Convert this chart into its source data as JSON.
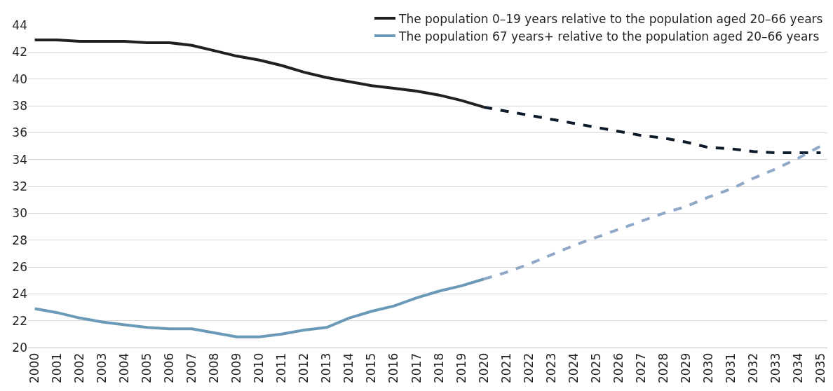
{
  "chart_data": {
    "type": "line",
    "categories": [
      "2000",
      "2001",
      "2002",
      "2003",
      "2004",
      "2005",
      "2006",
      "2007",
      "2008",
      "2009",
      "2010",
      "2011",
      "2012",
      "2013",
      "2014",
      "2015",
      "2016",
      "2017",
      "2018",
      "2019",
      "2020",
      "2021",
      "2022",
      "2023",
      "2024",
      "2025",
      "2026",
      "2027",
      "2028",
      "2029",
      "2030",
      "2031",
      "2032",
      "2033",
      "2034",
      "2035"
    ],
    "series": [
      {
        "name": "The population 0–19 years relative to the population aged 20–66 years",
        "color": "#231f20",
        "line_style": "solid",
        "values": [
          42.9,
          42.9,
          42.8,
          42.8,
          42.8,
          42.7,
          42.7,
          42.5,
          42.1,
          41.7,
          41.4,
          41.0,
          40.5,
          40.1,
          39.8,
          39.5,
          39.3,
          39.1,
          38.8,
          38.4,
          37.9,
          null,
          null,
          null,
          null,
          null,
          null,
          null,
          null,
          null,
          null,
          null,
          null,
          null,
          null,
          null
        ]
      },
      {
        "name": "The population 67 years+ relative to the population aged 20–66 years",
        "color": "#6b9ab8",
        "line_style": "solid",
        "values": [
          22.9,
          22.6,
          22.2,
          21.9,
          21.7,
          21.5,
          21.4,
          21.4,
          21.1,
          20.8,
          20.8,
          21.0,
          21.3,
          21.5,
          22.2,
          22.7,
          23.1,
          23.7,
          24.2,
          24.6,
          25.1,
          null,
          null,
          null,
          null,
          null,
          null,
          null,
          null,
          null,
          null,
          null,
          null,
          null,
          null,
          null
        ]
      },
      {
        "color": "#0d1b2a",
        "line_style": "dashed",
        "values": [
          null,
          null,
          null,
          null,
          null,
          null,
          null,
          null,
          null,
          null,
          null,
          null,
          null,
          null,
          null,
          null,
          null,
          null,
          null,
          null,
          37.9,
          37.6,
          37.3,
          37.0,
          36.7,
          36.4,
          36.1,
          35.8,
          35.6,
          35.3,
          34.9,
          34.8,
          34.6,
          34.5,
          34.5,
          34.5
        ]
      },
      {
        "color": "#8fa8c8",
        "line_style": "dashed",
        "values": [
          null,
          null,
          null,
          null,
          null,
          null,
          null,
          null,
          null,
          null,
          null,
          null,
          null,
          null,
          null,
          null,
          null,
          null,
          null,
          null,
          25.1,
          25.6,
          26.2,
          26.9,
          27.6,
          28.2,
          28.8,
          29.4,
          30.0,
          30.5,
          31.2,
          31.8,
          32.6,
          33.3,
          34.1,
          35.0
        ]
      }
    ],
    "ylim": [
      20,
      44
    ],
    "yticks": [
      20,
      22,
      24,
      26,
      28,
      30,
      32,
      34,
      36,
      38,
      40,
      42,
      44
    ],
    "grid": "y",
    "legend": "top right",
    "marker": "none"
  }
}
